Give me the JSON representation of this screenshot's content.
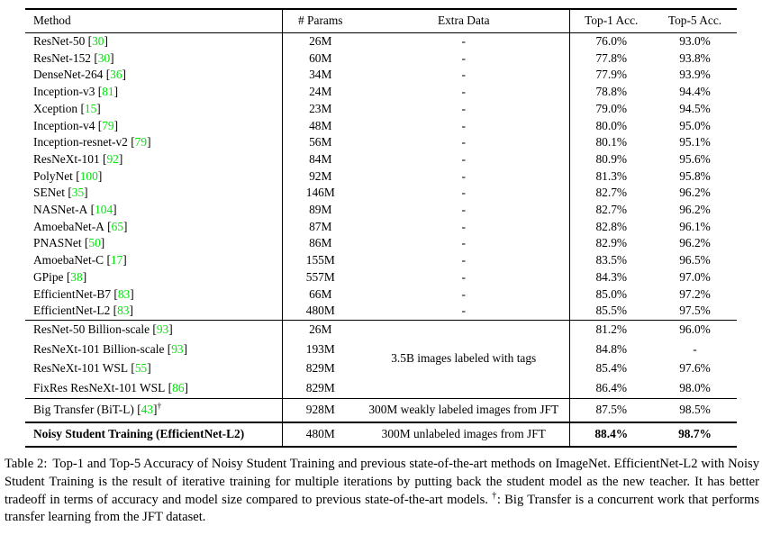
{
  "colors": {
    "citation_green": "#00e40a",
    "text_black": "#000000",
    "background": "#ffffff"
  },
  "table": {
    "headers": {
      "method": "Method",
      "params": "# Params",
      "extra_data": "Extra Data",
      "top1": "Top-1 Acc.",
      "top5": "Top-5 Acc."
    },
    "groups": [
      {
        "rows": [
          {
            "method": "ResNet-50",
            "cite": "30",
            "params": "26M",
            "extra": "-",
            "top1": "76.0%",
            "top5": "93.0%"
          },
          {
            "method": "ResNet-152",
            "cite": "30",
            "params": "60M",
            "extra": "-",
            "top1": "77.8%",
            "top5": "93.8%"
          },
          {
            "method": "DenseNet-264",
            "cite": "36",
            "params": "34M",
            "extra": "-",
            "top1": "77.9%",
            "top5": "93.9%"
          },
          {
            "method": "Inception-v3",
            "cite": "81",
            "params": "24M",
            "extra": "-",
            "top1": "78.8%",
            "top5": "94.4%"
          },
          {
            "method": "Xception",
            "cite": "15",
            "params": "23M",
            "extra": "-",
            "top1": "79.0%",
            "top5": "94.5%"
          },
          {
            "method": "Inception-v4",
            "cite": "79",
            "params": "48M",
            "extra": "-",
            "top1": "80.0%",
            "top5": "95.0%"
          },
          {
            "method": "Inception-resnet-v2",
            "cite": "79",
            "params": "56M",
            "extra": "-",
            "top1": "80.1%",
            "top5": "95.1%"
          },
          {
            "method": "ResNeXt-101",
            "cite": "92",
            "params": "84M",
            "extra": "-",
            "top1": "80.9%",
            "top5": "95.6%"
          },
          {
            "method": "PolyNet",
            "cite": "100",
            "params": "92M",
            "extra": "-",
            "top1": "81.3%",
            "top5": "95.8%"
          },
          {
            "method": "SENet",
            "cite": "35",
            "params": "146M",
            "extra": "-",
            "top1": "82.7%",
            "top5": "96.2%"
          },
          {
            "method": "NASNet-A",
            "cite": "104",
            "params": "89M",
            "extra": "-",
            "top1": "82.7%",
            "top5": "96.2%"
          },
          {
            "method": "AmoebaNet-A",
            "cite": "65",
            "params": "87M",
            "extra": "-",
            "top1": "82.8%",
            "top5": "96.1%"
          },
          {
            "method": "PNASNet",
            "cite": "50",
            "params": "86M",
            "extra": "-",
            "top1": "82.9%",
            "top5": "96.2%"
          },
          {
            "method": "AmoebaNet-C",
            "cite": "17",
            "params": "155M",
            "extra": "-",
            "top1": "83.5%",
            "top5": "96.5%"
          },
          {
            "method": "GPipe",
            "cite": "38",
            "params": "557M",
            "extra": "-",
            "top1": "84.3%",
            "top5": "97.0%"
          },
          {
            "method": "EfficientNet-B7",
            "cite": "83",
            "params": "66M",
            "extra": "-",
            "top1": "85.0%",
            "top5": "97.2%"
          },
          {
            "method": "EfficientNet-L2",
            "cite": "83",
            "params": "480M",
            "extra": "-",
            "top1": "85.5%",
            "top5": "97.5%"
          }
        ]
      },
      {
        "shared_extra": "3.5B images labeled with tags",
        "rows": [
          {
            "method": "ResNet-50 Billion-scale",
            "cite": "93",
            "params": "26M",
            "top1": "81.2%",
            "top5": "96.0%"
          },
          {
            "method": "ResNeXt-101 Billion-scale",
            "cite": "93",
            "params": "193M",
            "top1": "84.8%",
            "top5": "-"
          },
          {
            "method": "ResNeXt-101 WSL",
            "cite": "55",
            "params": "829M",
            "top1": "85.4%",
            "top5": "97.6%"
          },
          {
            "method": "FixRes ResNeXt-101 WSL",
            "cite": "86",
            "params": "829M",
            "top1": "86.4%",
            "top5": "98.0%"
          }
        ]
      },
      {
        "rows": [
          {
            "method": "Big Transfer (BiT-L)",
            "cite": "43",
            "dagger": "†",
            "params": "928M",
            "extra": "300M weakly labeled images from JFT",
            "top1": "87.5%",
            "top5": "98.5%"
          }
        ]
      },
      {
        "rows": [
          {
            "method": "Noisy Student Training (EfficientNet-L2)",
            "bold": true,
            "params": "480M",
            "extra": "300M unlabeled images from JFT",
            "top1": "88.4%",
            "top5": "98.7%"
          }
        ]
      }
    ]
  },
  "caption": {
    "label": "Table 2:",
    "body": "Top-1 and Top-5 Accuracy of Noisy Student Training and previous state-of-the-art methods on ImageNet. EfficientNet-L2 with Noisy Student Training is the result of iterative training for multiple iterations by putting back the student model as the new teacher. It has better tradeoff in terms of accuracy and model size compared to previous state-of-the-art models.",
    "dagger": "†",
    "after_dagger": ": Big Transfer is a concurrent work that performs transfer learning from the JFT dataset."
  }
}
